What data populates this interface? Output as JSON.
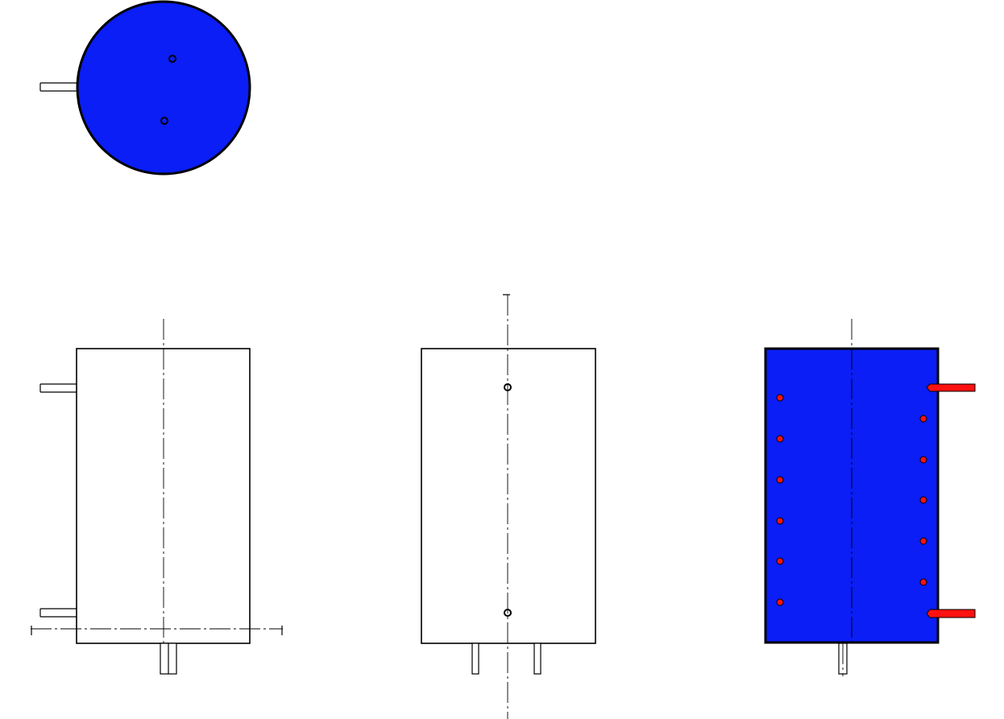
{
  "colors": {
    "fill_blue": "#0a1ef5",
    "pipe_red": "#ff1111",
    "dot_red": "#ff1111",
    "line": "#000000",
    "background": "#ffffff"
  },
  "views": [
    {
      "name": "top-view",
      "shape": "circle",
      "filled": true,
      "holes": 2,
      "side_pipes": 1
    },
    {
      "name": "front-view",
      "shape": "rectangle",
      "filled": false,
      "side_pipes": 2,
      "bottom_pipes": 1
    },
    {
      "name": "side-view",
      "shape": "rectangle",
      "filled": false,
      "holes": 2,
      "bottom_pipes": 2
    },
    {
      "name": "section-view",
      "shape": "rectangle",
      "filled": true,
      "left_dots": 6,
      "right_dots": 5,
      "side_pipes": 2,
      "bottom_pipes": 1
    }
  ]
}
